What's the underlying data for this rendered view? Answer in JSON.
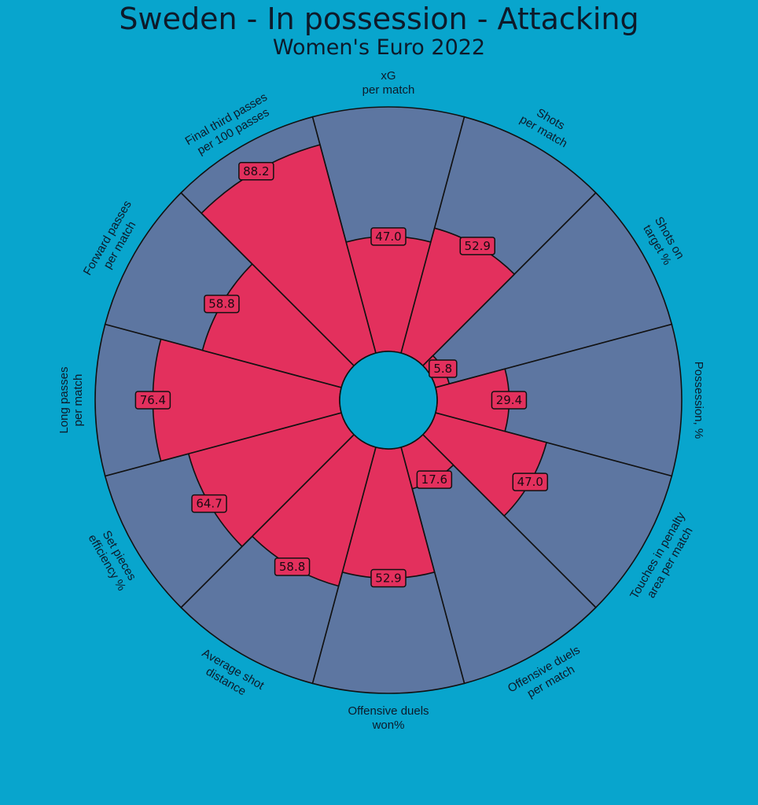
{
  "header": {
    "title": "Sweden - In possession - Attacking",
    "subtitle": "Women's Euro 2022"
  },
  "colors": {
    "background": "#08a5cd",
    "slice_bg": "#5d76a1",
    "value_fill": "#e3305d",
    "edge": "#111111",
    "text": "#0d1a2a"
  },
  "chart_data": {
    "type": "pizza",
    "title": "Sweden - In possession - Attacking",
    "subtitle": "Women's Euro 2022",
    "range": [
      0,
      100
    ],
    "categories": [
      "xG\nper match",
      "Shots\nper match",
      "Shots on\ntarget %",
      "Possession, %",
      "Touches in penalty\narea per match",
      "Offensive duels\nper match",
      "Offensive duels\nwon%",
      "Average shot\ndistance",
      "Set pieces\nefficiency %",
      "Long passes\nper match",
      "Forward passes\nper match",
      "Final third passes\nper 100 passes"
    ],
    "values": [
      47.0,
      52.9,
      5.8,
      29.4,
      47.0,
      17.6,
      52.9,
      58.8,
      64.7,
      76.4,
      58.8,
      88.2
    ],
    "value_labels": [
      "47.0",
      "52.9",
      "5.8",
      "29.4",
      "47.0",
      "17.6",
      "52.9",
      "58.8",
      "64.7",
      "76.4",
      "58.8",
      "88.2"
    ]
  }
}
